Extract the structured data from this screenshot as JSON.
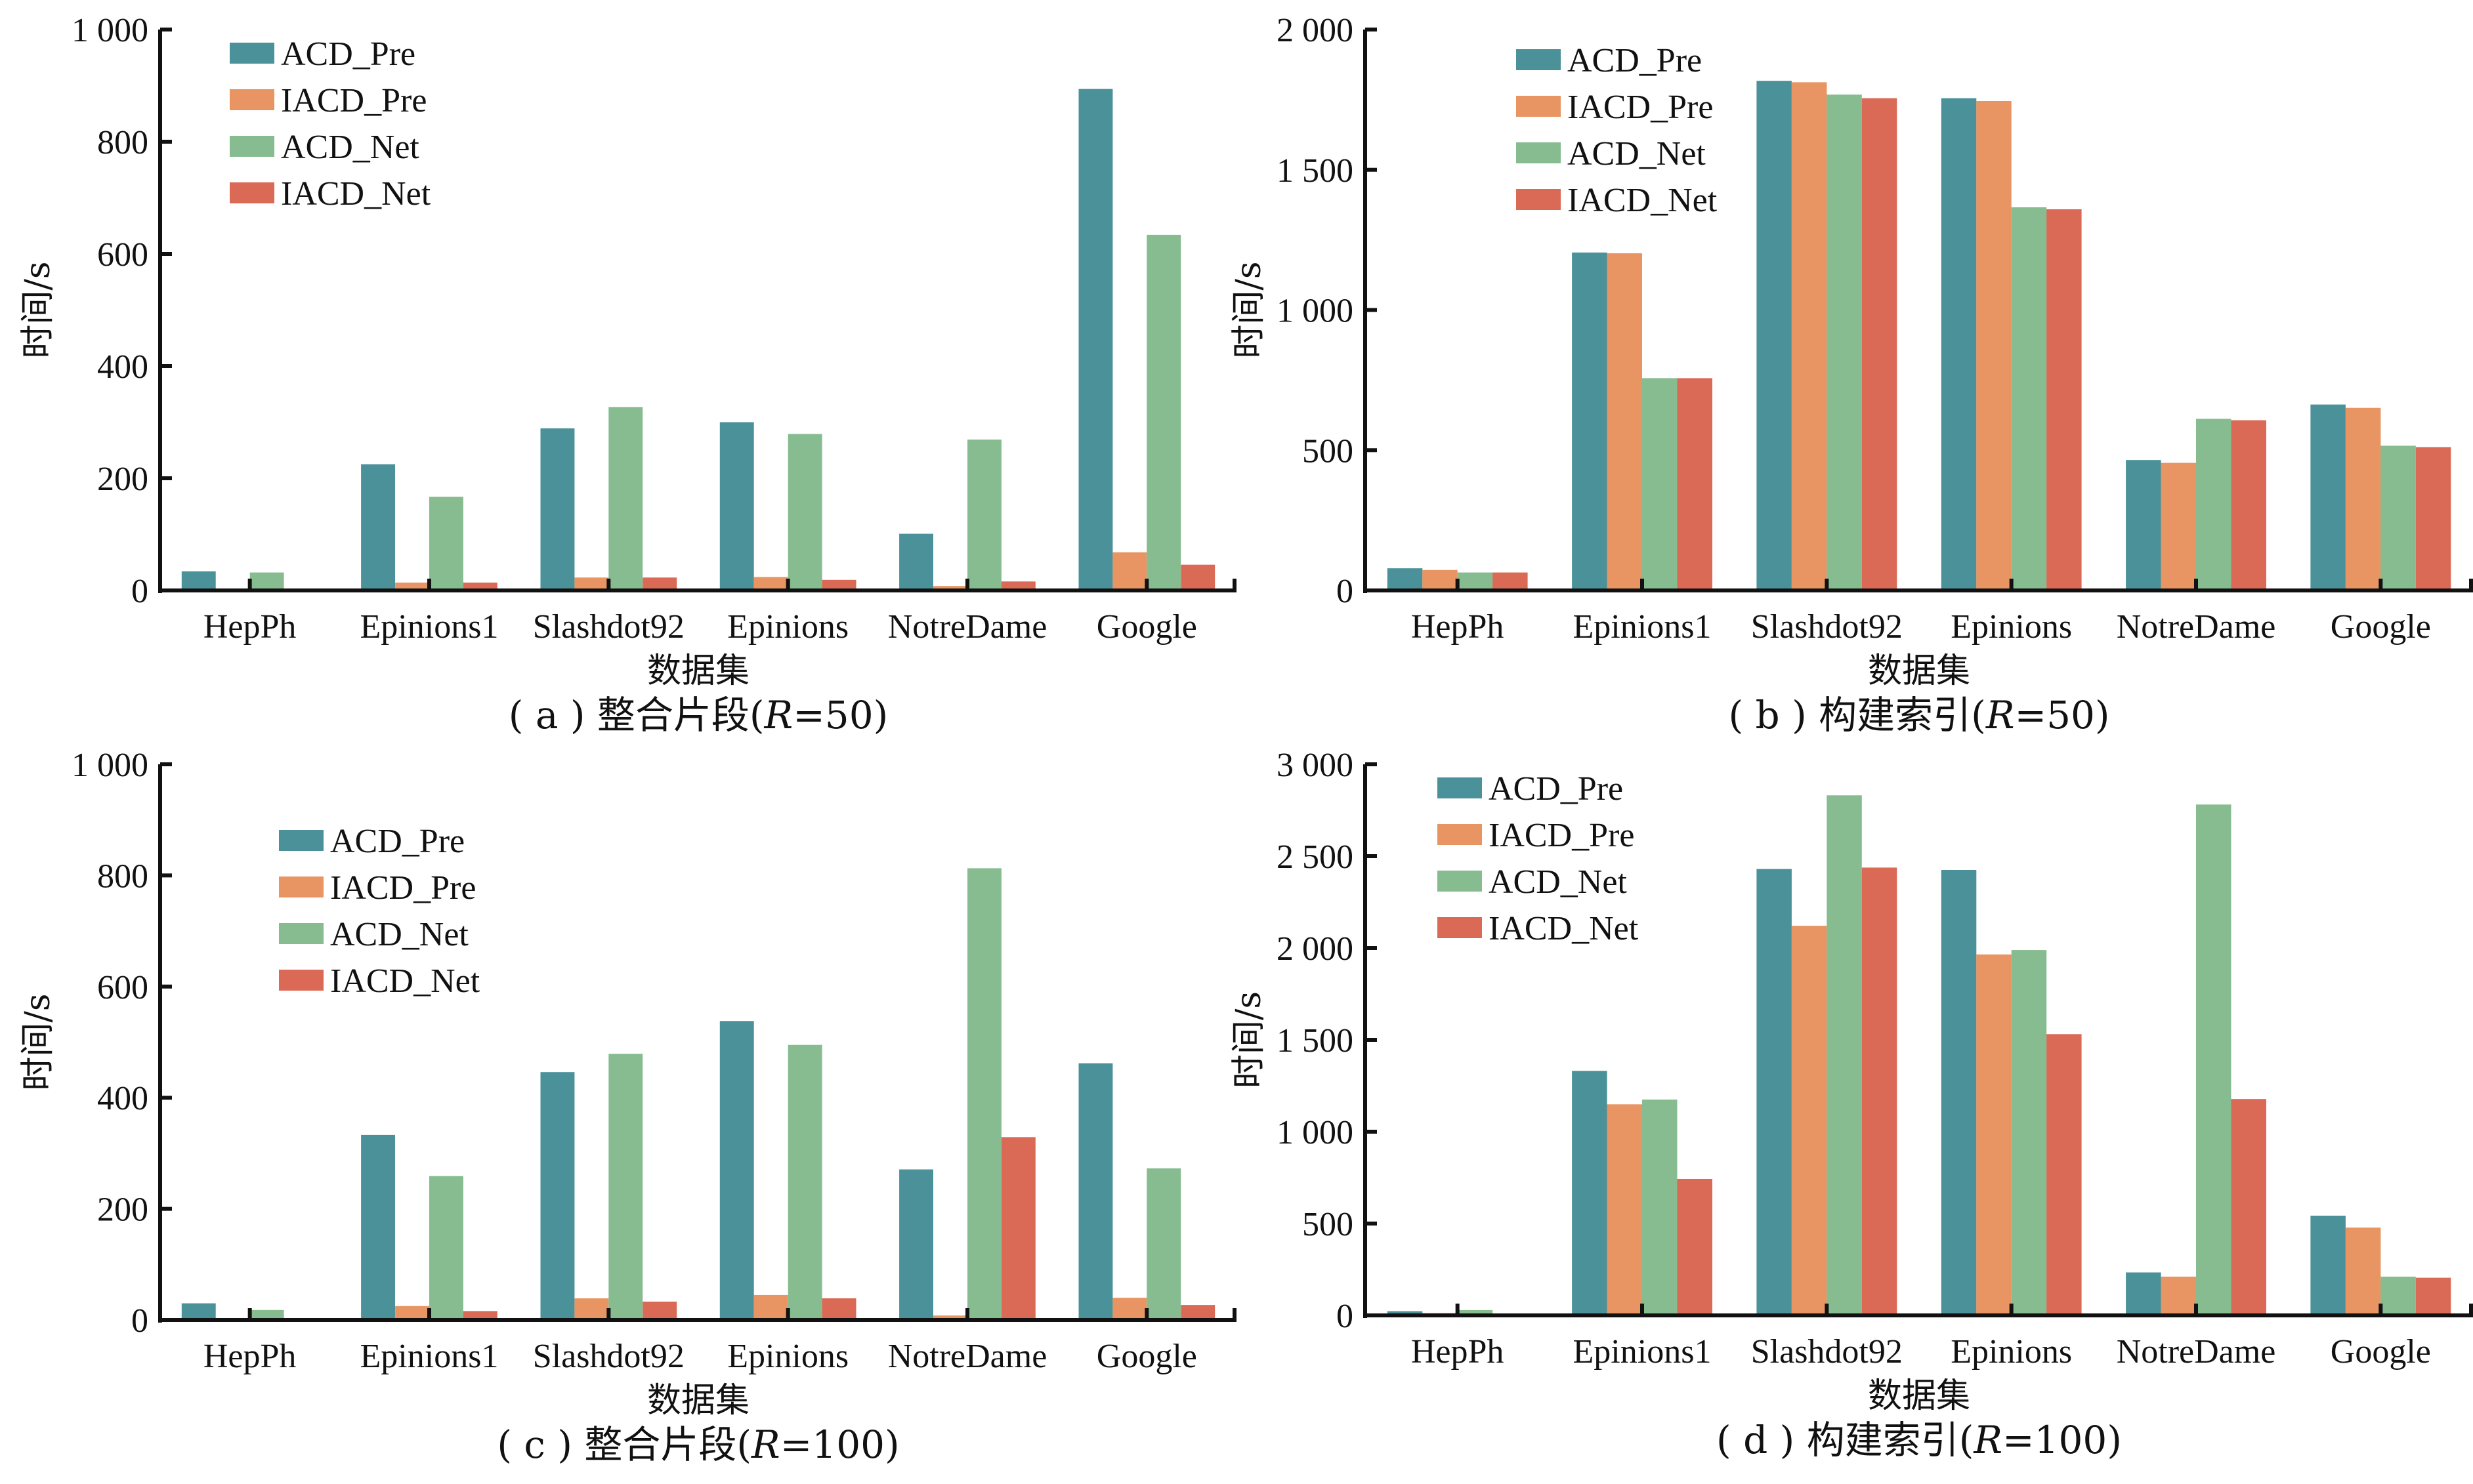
{
  "colors": {
    "ACD_Pre": "#4A9199",
    "IACD_Pre": "#E89563",
    "ACD_Net": "#86BC8F",
    "IACD_Net": "#DA6A55"
  },
  "chart_data": [
    {
      "id": "a",
      "type": "bar",
      "title": "( a ) 整合片段(R=50)",
      "caption_prefix": "( a ) 整合片段(",
      "caption_var": "R",
      "caption_suffix": "=50)",
      "xlabel": "数据集",
      "ylabel": "时间/s",
      "ylim": [
        0,
        1000
      ],
      "yticks": [
        0,
        200,
        400,
        600,
        800,
        1000
      ],
      "ytick_labels": [
        "0",
        "200",
        "400",
        "600",
        "800",
        "1 000"
      ],
      "categories": [
        "HepPh",
        "Epinions1",
        "Slashdot92",
        "Epinions",
        "NotreDame",
        "Google"
      ],
      "legend_position": "top-left",
      "series": [
        {
          "name": "ACD_Pre",
          "values": [
            34,
            225,
            289,
            300,
            101,
            894
          ]
        },
        {
          "name": "IACD_Pre",
          "values": [
            3,
            14,
            23,
            24,
            8,
            68
          ]
        },
        {
          "name": "ACD_Net",
          "values": [
            32,
            167,
            327,
            279,
            269,
            634
          ]
        },
        {
          "name": "IACD_Net",
          "values": [
            3,
            14,
            23,
            19,
            16,
            46
          ]
        }
      ]
    },
    {
      "id": "b",
      "type": "bar",
      "title": "( b ) 构建索引(R=50)",
      "caption_prefix": "( b ) 构建索引(",
      "caption_var": "R",
      "caption_suffix": "=50)",
      "xlabel": "数据集",
      "ylabel": "时间/s",
      "ylim": [
        0,
        2000
      ],
      "yticks": [
        0,
        500,
        1000,
        1500,
        2000
      ],
      "ytick_labels": [
        "0",
        "500",
        "1 000",
        "1 500",
        "2 000"
      ],
      "categories": [
        "HepPh",
        "Epinions1",
        "Slashdot92",
        "Epinions",
        "NotreDame",
        "Google"
      ],
      "legend_position": "top-left",
      "series": [
        {
          "name": "ACD_Pre",
          "values": [
            79,
            1205,
            1817,
            1755,
            465,
            663
          ]
        },
        {
          "name": "IACD_Pre",
          "values": [
            73,
            1202,
            1812,
            1745,
            455,
            651
          ]
        },
        {
          "name": "ACD_Net",
          "values": [
            64,
            757,
            1768,
            1366,
            612,
            516
          ]
        },
        {
          "name": "IACD_Net",
          "values": [
            64,
            757,
            1755,
            1359,
            607,
            511
          ]
        }
      ]
    },
    {
      "id": "c",
      "type": "bar",
      "title": "( c ) 整合片段(R=100)",
      "caption_prefix": "( c ) 整合片段(",
      "caption_var": "R",
      "caption_suffix": "=100)",
      "xlabel": "数据集",
      "ylabel": "时间/s",
      "ylim": [
        0,
        1000
      ],
      "yticks": [
        0,
        200,
        400,
        600,
        800,
        1000
      ],
      "ytick_labels": [
        "0",
        "200",
        "400",
        "600",
        "800",
        "1 000"
      ],
      "categories": [
        "HepPh",
        "Epinions1",
        "Slashdot92",
        "Epinions",
        "NotreDame",
        "Google"
      ],
      "legend_position": "top-left",
      "series": [
        {
          "name": "ACD_Pre",
          "values": [
            30,
            333,
            446,
            538,
            271,
            462
          ]
        },
        {
          "name": "IACD_Pre",
          "values": [
            3,
            25,
            39,
            45,
            8,
            40
          ]
        },
        {
          "name": "ACD_Net",
          "values": [
            18,
            259,
            479,
            495,
            813,
            273
          ]
        },
        {
          "name": "IACD_Net",
          "values": [
            3,
            16,
            33,
            39,
            329,
            27
          ]
        }
      ]
    },
    {
      "id": "d",
      "type": "bar",
      "title": "( d ) 构建索引(R=100)",
      "caption_prefix": "( d ) 构建索引(",
      "caption_var": "R",
      "caption_suffix": "=100)",
      "xlabel": "数据集",
      "ylabel": "时间/s",
      "ylim": [
        0,
        3000
      ],
      "yticks": [
        0,
        500,
        1000,
        1500,
        2000,
        2500,
        3000
      ],
      "ytick_labels": [
        "0",
        "500",
        "1 000",
        "1 500",
        "2 000",
        "2 500",
        "3 000"
      ],
      "categories": [
        "HepPh",
        "Epinions1",
        "Slashdot92",
        "Epinions",
        "NotreDame",
        "Google"
      ],
      "legend_position": "top-left",
      "series": [
        {
          "name": "ACD_Pre",
          "values": [
            23,
            1331,
            2430,
            2425,
            234,
            543
          ]
        },
        {
          "name": "IACD_Pre",
          "values": [
            13,
            1149,
            2121,
            1965,
            211,
            478
          ]
        },
        {
          "name": "ACD_Net",
          "values": [
            29,
            1175,
            2831,
            1989,
            2781,
            211
          ]
        },
        {
          "name": "IACD_Net",
          "values": [
            8,
            743,
            2438,
            1531,
            1178,
            205
          ]
        }
      ]
    }
  ]
}
